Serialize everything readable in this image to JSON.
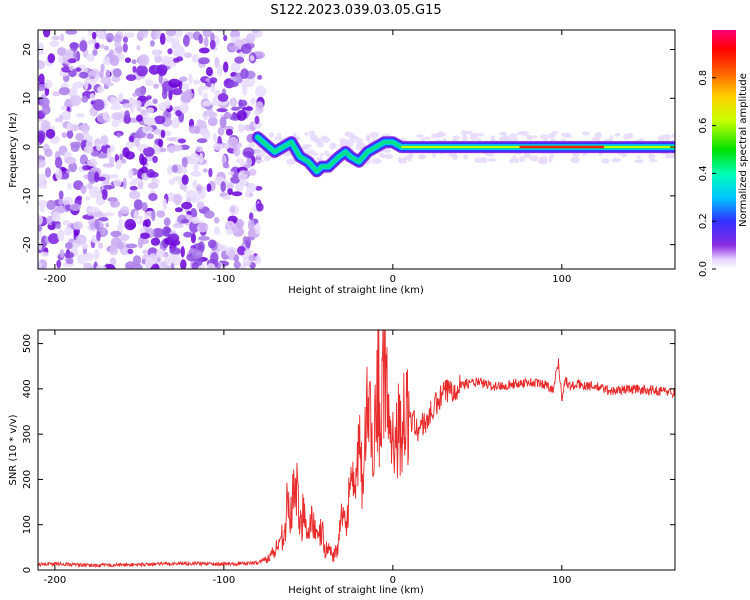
{
  "title": "S122.2023.039.03.05.G15",
  "colors": {
    "snr_line": "#e82a2a",
    "axis": "#000000"
  },
  "chart_data": [
    {
      "type": "heatmap",
      "title": "S122.2023.039.03.05.G15",
      "xlabel": "Height of straight line (km)",
      "ylabel": "Frequency (Hz)",
      "xlim": [
        -210,
        167
      ],
      "ylim": [
        -25,
        24
      ],
      "x_ticks": [
        -200,
        -100,
        0,
        100
      ],
      "y_ticks": [
        -20,
        -10,
        0,
        10,
        20
      ],
      "colorbar": {
        "label": "Normalized spectral amplitude",
        "range": [
          0,
          1
        ],
        "ticks": [
          0.0,
          0.2,
          0.4,
          0.6,
          0.8
        ],
        "colormap": "rainbow (white-violet-blue-cyan-green-yellow-orange-red-magenta)"
      },
      "ridge": {
        "description": "dominant frequency ridge",
        "x": [
          -80,
          -70,
          -60,
          -55,
          -50,
          -45,
          -42,
          -38,
          -32,
          -28,
          -25,
          -20,
          -15,
          -10,
          -5,
          0,
          5,
          10,
          20,
          50,
          100,
          167
        ],
        "y": [
          2,
          -1,
          1,
          -2,
          -3,
          -5,
          -4,
          -4,
          -2,
          -1,
          -2,
          -3,
          -1,
          0,
          1,
          1,
          0,
          0,
          0,
          0,
          0,
          0
        ]
      },
      "scatter_region": {
        "x_range": [
          -210,
          -78
        ],
        "y_range": [
          -25,
          24
        ]
      }
    },
    {
      "type": "line",
      "xlabel": "Height of straight line (km)",
      "ylabel": "SNR (10 * v/v)",
      "xlim": [
        -210,
        167
      ],
      "ylim": [
        0,
        530
      ],
      "x_ticks": [
        -200,
        -100,
        0,
        100
      ],
      "y_ticks": [
        0,
        100,
        200,
        300,
        400,
        500
      ],
      "series": [
        {
          "x": [
            -210,
            -200,
            -180,
            -150,
            -120,
            -100,
            -90,
            -80,
            -75,
            -70,
            -65,
            -62,
            -60,
            -58,
            -55,
            -52,
            -50,
            -48,
            -45,
            -42,
            -40,
            -38,
            -35,
            -32,
            -30,
            -28,
            -25,
            -22,
            -20,
            -18,
            -15,
            -12,
            -10,
            -8,
            -5,
            -3,
            0,
            5,
            10,
            15,
            20,
            25,
            30,
            40,
            50,
            60,
            70,
            80,
            90,
            95,
            98,
            100,
            102,
            105,
            110,
            120,
            130,
            140,
            150,
            160,
            167
          ],
          "values": [
            12,
            14,
            10,
            12,
            15,
            13,
            14,
            16,
            25,
            40,
            80,
            150,
            110,
            220,
            90,
            150,
            70,
            130,
            60,
            90,
            40,
            50,
            30,
            60,
            120,
            90,
            200,
            150,
            300,
            180,
            380,
            250,
            420,
            300,
            460,
            350,
            300,
            320,
            340,
            310,
            330,
            360,
            390,
            410,
            415,
            405,
            410,
            415,
            410,
            400,
            460,
            380,
            420,
            405,
            410,
            405,
            395,
            400,
            398,
            395,
            392
          ]
        }
      ]
    }
  ]
}
